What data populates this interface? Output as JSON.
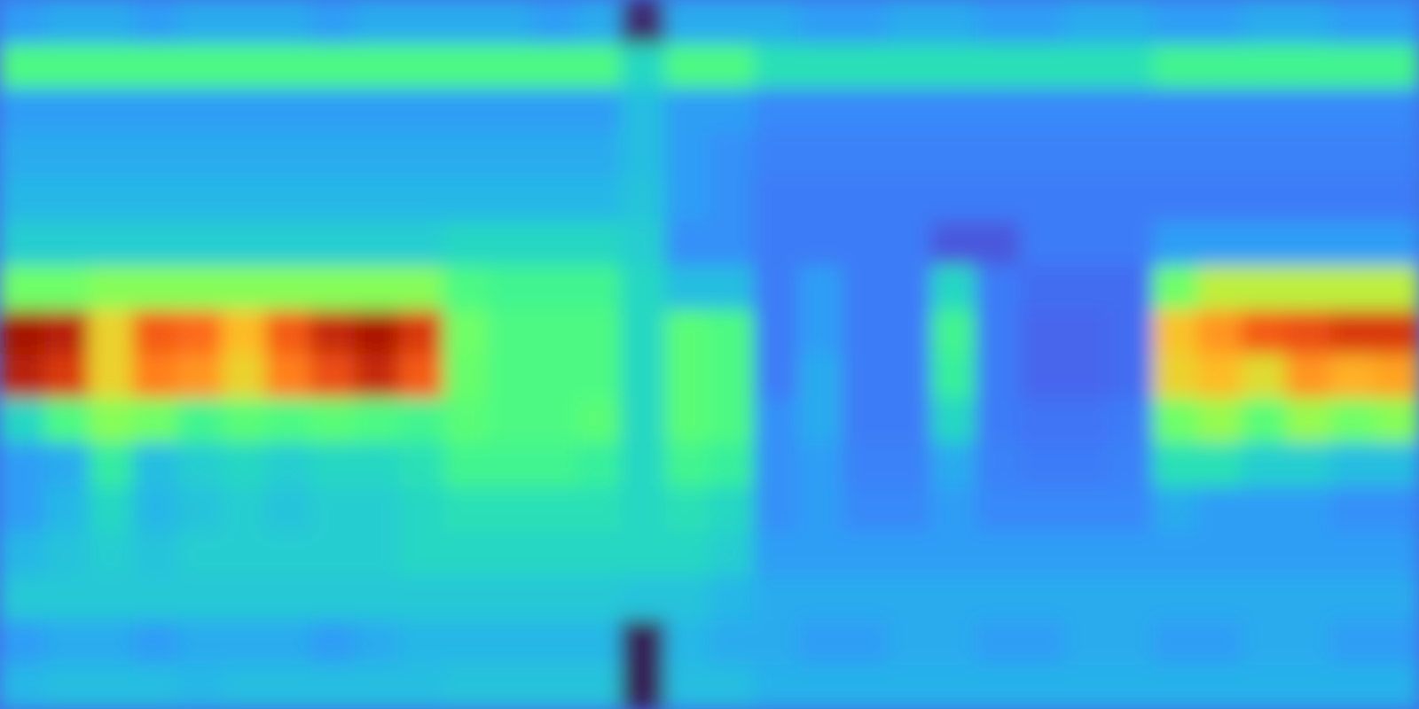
{
  "chart_data": {
    "type": "heatmap",
    "tick_labels": false,
    "zlim": [
      0,
      1
    ],
    "cells": [
      [
        0.2,
        0.22,
        0.22,
        0.2,
        0.22,
        0.22,
        0.22,
        0.2,
        0.22,
        0.22,
        0.22,
        0.22,
        0.2,
        0.22,
        0.03,
        0.22,
        0.22,
        0.22,
        0.2,
        0.2,
        0.22,
        0.22,
        0.2,
        0.2,
        0.22,
        0.22,
        0.2,
        0.2,
        0.22,
        0.22,
        0.2,
        0.2
      ],
      [
        0.4,
        0.4,
        0.4,
        0.4,
        0.4,
        0.4,
        0.4,
        0.4,
        0.4,
        0.4,
        0.4,
        0.4,
        0.4,
        0.4,
        0.3,
        0.4,
        0.4,
        0.32,
        0.32,
        0.32,
        0.32,
        0.32,
        0.32,
        0.32,
        0.32,
        0.32,
        0.38,
        0.38,
        0.38,
        0.38,
        0.38,
        0.38
      ],
      [
        0.2,
        0.2,
        0.2,
        0.2,
        0.2,
        0.2,
        0.2,
        0.2,
        0.2,
        0.2,
        0.2,
        0.2,
        0.2,
        0.2,
        0.25,
        0.2,
        0.2,
        0.17,
        0.17,
        0.17,
        0.17,
        0.17,
        0.17,
        0.17,
        0.17,
        0.17,
        0.17,
        0.17,
        0.17,
        0.17,
        0.17,
        0.17
      ],
      [
        0.22,
        0.22,
        0.22,
        0.22,
        0.22,
        0.22,
        0.22,
        0.22,
        0.22,
        0.22,
        0.22,
        0.22,
        0.22,
        0.22,
        0.25,
        0.2,
        0.18,
        0.16,
        0.16,
        0.16,
        0.16,
        0.16,
        0.16,
        0.16,
        0.16,
        0.16,
        0.16,
        0.16,
        0.16,
        0.16,
        0.16,
        0.16
      ],
      [
        0.24,
        0.24,
        0.24,
        0.24,
        0.24,
        0.24,
        0.24,
        0.24,
        0.24,
        0.24,
        0.24,
        0.24,
        0.24,
        0.24,
        0.26,
        0.2,
        0.18,
        0.15,
        0.15,
        0.15,
        0.15,
        0.15,
        0.15,
        0.15,
        0.15,
        0.15,
        0.15,
        0.15,
        0.15,
        0.15,
        0.15,
        0.15
      ],
      [
        0.28,
        0.28,
        0.28,
        0.28,
        0.28,
        0.28,
        0.28,
        0.28,
        0.28,
        0.28,
        0.3,
        0.3,
        0.3,
        0.3,
        0.28,
        0.18,
        0.18,
        0.15,
        0.15,
        0.15,
        0.15,
        0.1,
        0.1,
        0.15,
        0.15,
        0.15,
        0.2,
        0.2,
        0.2,
        0.2,
        0.2,
        0.2
      ],
      [
        0.45,
        0.45,
        0.48,
        0.48,
        0.48,
        0.48,
        0.48,
        0.48,
        0.48,
        0.48,
        0.4,
        0.38,
        0.38,
        0.38,
        0.3,
        0.25,
        0.25,
        0.15,
        0.2,
        0.15,
        0.15,
        0.3,
        0.15,
        0.13,
        0.13,
        0.13,
        0.45,
        0.55,
        0.55,
        0.55,
        0.55,
        0.55
      ],
      [
        0.93,
        0.9,
        0.62,
        0.8,
        0.78,
        0.66,
        0.8,
        0.88,
        0.92,
        0.85,
        0.45,
        0.4,
        0.4,
        0.4,
        0.3,
        0.42,
        0.4,
        0.15,
        0.2,
        0.15,
        0.15,
        0.38,
        0.15,
        0.12,
        0.12,
        0.13,
        0.65,
        0.72,
        0.8,
        0.82,
        0.85,
        0.85
      ],
      [
        0.9,
        0.85,
        0.62,
        0.75,
        0.72,
        0.62,
        0.75,
        0.82,
        0.88,
        0.8,
        0.44,
        0.4,
        0.4,
        0.4,
        0.3,
        0.42,
        0.4,
        0.15,
        0.22,
        0.15,
        0.15,
        0.36,
        0.15,
        0.12,
        0.12,
        0.13,
        0.62,
        0.66,
        0.6,
        0.72,
        0.68,
        0.7
      ],
      [
        0.3,
        0.4,
        0.48,
        0.45,
        0.38,
        0.42,
        0.4,
        0.42,
        0.4,
        0.38,
        0.42,
        0.4,
        0.4,
        0.42,
        0.3,
        0.42,
        0.4,
        0.18,
        0.22,
        0.15,
        0.15,
        0.3,
        0.15,
        0.14,
        0.14,
        0.15,
        0.45,
        0.5,
        0.42,
        0.5,
        0.45,
        0.48
      ],
      [
        0.2,
        0.22,
        0.35,
        0.25,
        0.28,
        0.3,
        0.28,
        0.3,
        0.3,
        0.32,
        0.38,
        0.38,
        0.38,
        0.36,
        0.3,
        0.38,
        0.36,
        0.18,
        0.2,
        0.16,
        0.16,
        0.22,
        0.16,
        0.15,
        0.15,
        0.16,
        0.32,
        0.32,
        0.28,
        0.28,
        0.25,
        0.25
      ],
      [
        0.2,
        0.24,
        0.3,
        0.24,
        0.26,
        0.28,
        0.26,
        0.28,
        0.28,
        0.3,
        0.32,
        0.32,
        0.32,
        0.32,
        0.3,
        0.32,
        0.3,
        0.18,
        0.2,
        0.17,
        0.17,
        0.2,
        0.17,
        0.17,
        0.17,
        0.17,
        0.22,
        0.2,
        0.2,
        0.2,
        0.18,
        0.18
      ],
      [
        0.24,
        0.26,
        0.28,
        0.26,
        0.28,
        0.28,
        0.28,
        0.28,
        0.28,
        0.3,
        0.3,
        0.3,
        0.3,
        0.3,
        0.3,
        0.3,
        0.28,
        0.2,
        0.2,
        0.2,
        0.2,
        0.2,
        0.2,
        0.2,
        0.2,
        0.2,
        0.2,
        0.2,
        0.2,
        0.2,
        0.2,
        0.2
      ],
      [
        0.27,
        0.27,
        0.27,
        0.27,
        0.27,
        0.27,
        0.27,
        0.27,
        0.27,
        0.27,
        0.27,
        0.27,
        0.27,
        0.27,
        0.26,
        0.26,
        0.24,
        0.22,
        0.22,
        0.22,
        0.22,
        0.22,
        0.22,
        0.22,
        0.22,
        0.22,
        0.22,
        0.22,
        0.22,
        0.22,
        0.22,
        0.22
      ],
      [
        0.2,
        0.22,
        0.22,
        0.2,
        0.22,
        0.22,
        0.22,
        0.2,
        0.22,
        0.24,
        0.24,
        0.24,
        0.24,
        0.24,
        0.02,
        0.24,
        0.22,
        0.22,
        0.2,
        0.2,
        0.22,
        0.22,
        0.2,
        0.2,
        0.22,
        0.22,
        0.2,
        0.2,
        0.22,
        0.22,
        0.2,
        0.2
      ],
      [
        0.24,
        0.25,
        0.25,
        0.25,
        0.24,
        0.25,
        0.25,
        0.25,
        0.25,
        0.25,
        0.26,
        0.26,
        0.26,
        0.26,
        0.02,
        0.25,
        0.25,
        0.23,
        0.23,
        0.23,
        0.23,
        0.23,
        0.23,
        0.23,
        0.23,
        0.23,
        0.23,
        0.23,
        0.23,
        0.23,
        0.23,
        0.23
      ]
    ]
  }
}
